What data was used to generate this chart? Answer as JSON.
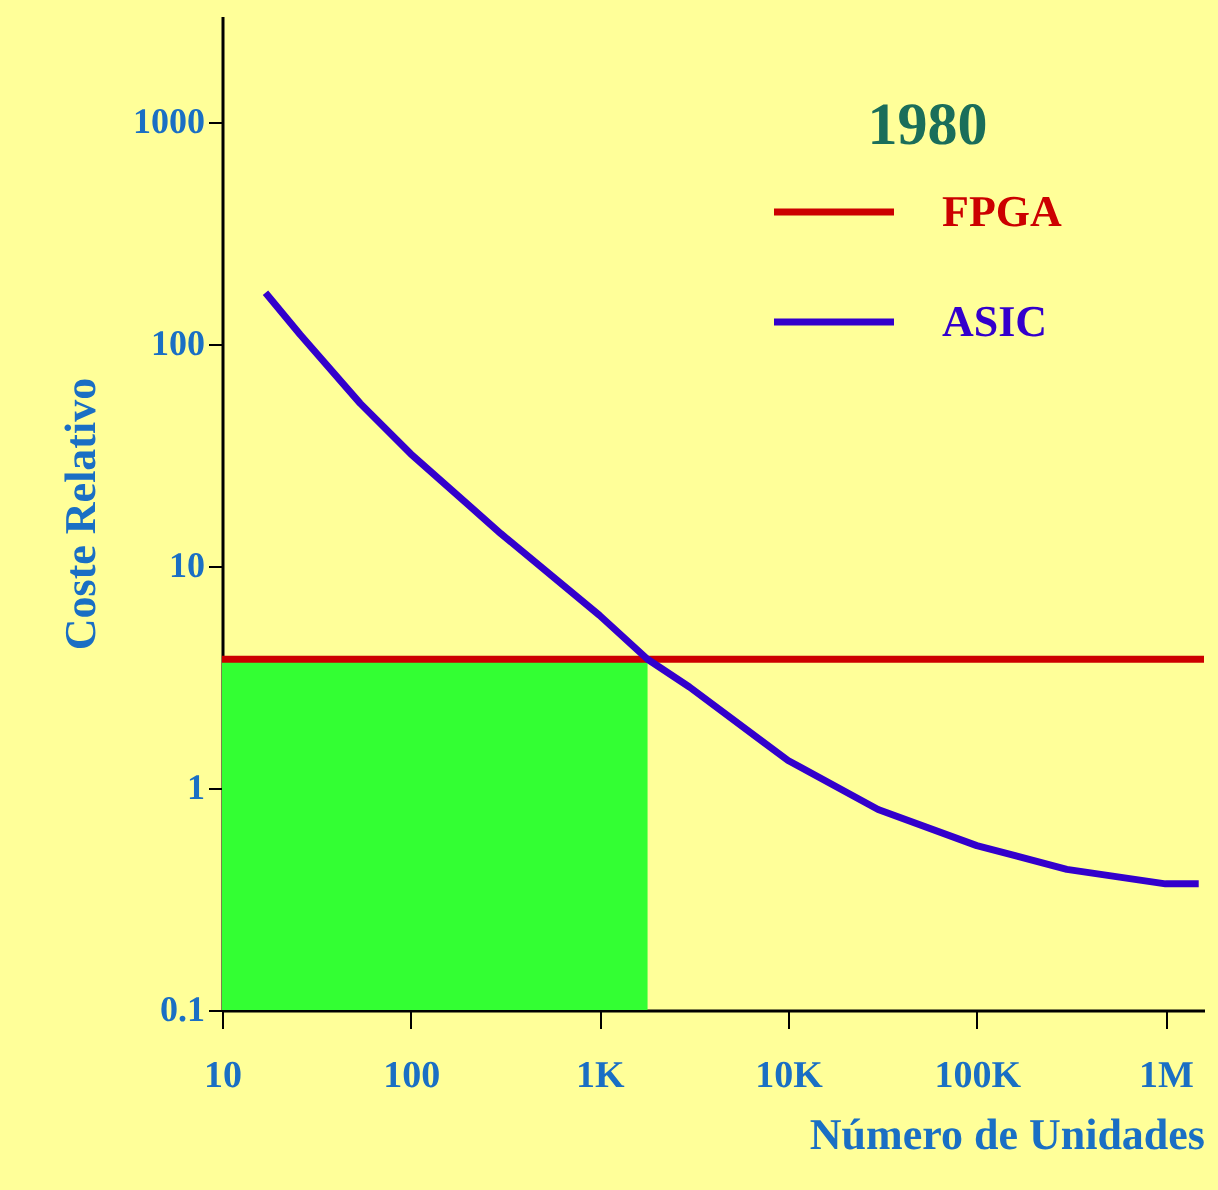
{
  "chart_data": {
    "type": "line",
    "title": "1980",
    "xlabel": "Número de Unidades",
    "ylabel": "Coste Relativo",
    "log": "xy",
    "xlim": [
      10,
      1600000
    ],
    "ylim": [
      0.1,
      3000
    ],
    "xticks": [
      10,
      100,
      {
        "value": 1000,
        "label": "1K"
      },
      {
        "value": 10000,
        "label": "10K"
      },
      {
        "value": 100000,
        "label": "100K"
      },
      {
        "value": 1000000,
        "label": "1M"
      }
    ],
    "yticks": [
      0.1,
      1,
      10,
      100,
      1000
    ],
    "grid": false,
    "legend": "top right",
    "marker": "none",
    "line_style": "solid",
    "series": [
      {
        "type": "area",
        "color": "#33ff33",
        "x": [
          10,
          1800
        ],
        "values": [
          3.8,
          3.8
        ]
      },
      {
        "name": "FPGA",
        "color": "#cc0000",
        "x": [
          10,
          1600000
        ],
        "values": [
          3.8,
          3.8
        ]
      },
      {
        "name": "ASIC",
        "color": "#3300cc",
        "x": [
          17,
          26,
          54,
          100,
          300,
          1000,
          1800,
          3000,
          10000,
          30000,
          100000,
          300000,
          1000000,
          1500000
        ],
        "values": [
          170,
          110,
          54,
          32,
          14,
          6,
          3.8,
          2.85,
          1.33,
          0.8,
          0.55,
          0.43,
          0.37,
          0.37
        ]
      }
    ]
  }
}
